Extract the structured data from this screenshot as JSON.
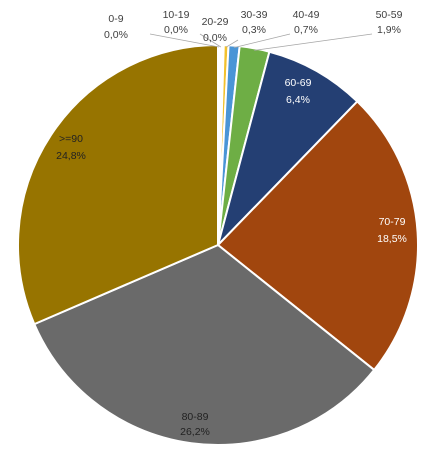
{
  "chart_data": {
    "type": "pie",
    "title": "",
    "legend": "none",
    "slices": [
      {
        "label": "0-9",
        "value": 0.0,
        "display": "0,0%",
        "color": "#F2B32A"
      },
      {
        "label": "10-19",
        "value": 0.0,
        "display": "0,0%",
        "color": "#4E8DD6"
      },
      {
        "label": "20-29",
        "value": 0.0,
        "display": "0,0%",
        "color": "#E2E2E2"
      },
      {
        "label": "30-39",
        "value": 0.3,
        "display": "0,3%",
        "color": "#F2C12E"
      },
      {
        "label": "40-49",
        "value": 0.7,
        "display": "0,7%",
        "color": "#4A95D6"
      },
      {
        "label": "50-59",
        "value": 1.9,
        "display": "1,9%",
        "color": "#6EAE45"
      },
      {
        "label": "60-69",
        "value": 6.4,
        "display": "6,4%",
        "color": "#243F73"
      },
      {
        "label": "70-79",
        "value": 18.5,
        "display": "18,5%",
        "color": "#A1460E"
      },
      {
        "label": "80-89",
        "value": 26.2,
        "display": "26,2%",
        "color": "#6A6A6A"
      },
      {
        "label": ">=90",
        "value": 24.8,
        "display": "24,8%",
        "color": "#977400"
      }
    ]
  }
}
